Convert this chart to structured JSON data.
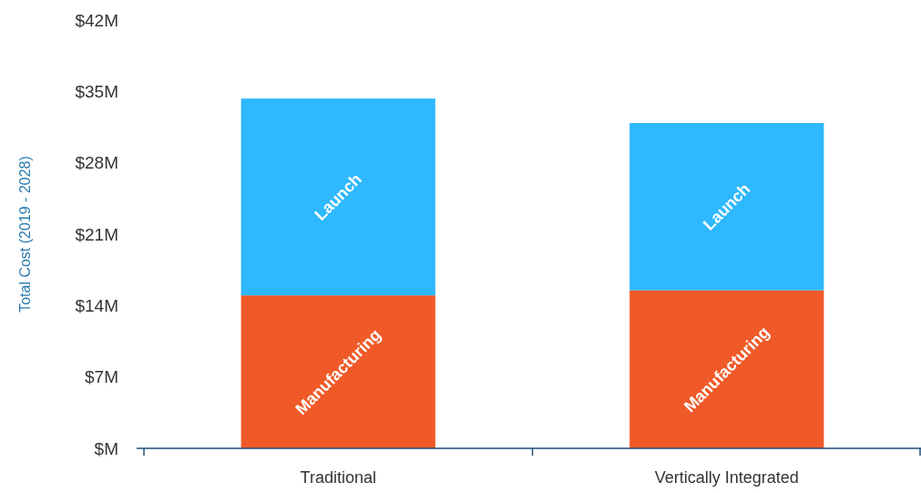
{
  "chart_data": {
    "type": "bar",
    "stacked": true,
    "ylabel": "Total Cost (2019 - 2028)",
    "categories": [
      "Traditional",
      "Vertically Integrated"
    ],
    "series": [
      {
        "name": "Manufacturing",
        "color": "#f05a28",
        "values": [
          15,
          15.5
        ]
      },
      {
        "name": "Launch",
        "color": "#2eb8fd",
        "values": [
          19.3,
          16.4
        ]
      }
    ],
    "ylim": [
      0,
      42
    ],
    "yticks": [
      {
        "value": 0,
        "label": "$M"
      },
      {
        "value": 7,
        "label": "$7M"
      },
      {
        "value": 14,
        "label": "$14M"
      },
      {
        "value": 21,
        "label": "$21M"
      },
      {
        "value": 28,
        "label": "$28M"
      },
      {
        "value": 35,
        "label": "$35M"
      },
      {
        "value": 42,
        "label": "$42M"
      }
    ],
    "grid": false
  }
}
